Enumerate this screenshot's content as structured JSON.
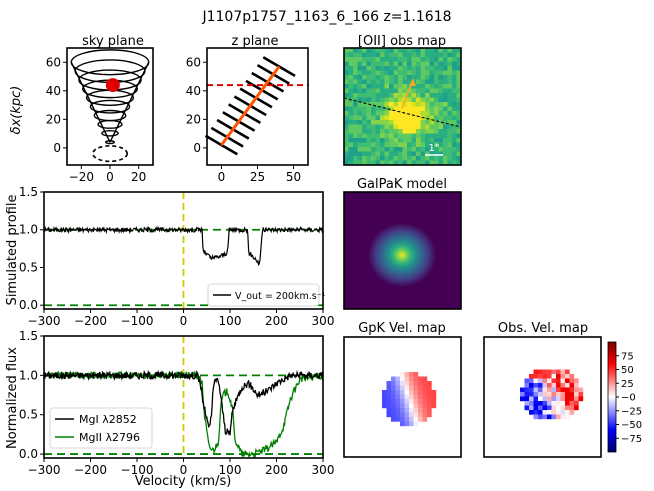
{
  "figure_title": "J1107p1757_1163_6_166 z=1.1618",
  "colors": {
    "spectrum_black": "#000000",
    "spectrum_green": "#008000",
    "continuum": "#008000",
    "zero_line": "#cccc00",
    "cone_red": "#e00000",
    "quasar_orange": "#ff5500",
    "arrow": "#f5a623",
    "velocity_positive": "#cc0000",
    "velocity_negative": "#00008b"
  },
  "chart_data": [
    {
      "id": "sky_plane",
      "type": "diagram",
      "title": "sky plane",
      "ylabel": "δx(kpc)",
      "xlim": [
        -30,
        30
      ],
      "ylim": [
        -12,
        70
      ],
      "xticks": [
        -20,
        0,
        20
      ],
      "yticks": [
        0,
        20,
        40,
        60
      ],
      "cone_rings": 10,
      "marker": {
        "x": 2,
        "y": 44,
        "label": "quasar line of sight"
      }
    },
    {
      "id": "z_plane",
      "type": "diagram",
      "title": "z plane",
      "xlim": [
        -10,
        60
      ],
      "ylim": [
        -12,
        70
      ],
      "xticks": [
        0,
        25,
        50
      ],
      "yticks": [
        0,
        20,
        40,
        60
      ],
      "dashed_line_y": 44,
      "axis_line": {
        "x": [
          0,
          40
        ],
        "y": [
          2,
          57
        ]
      }
    },
    {
      "id": "oii_map",
      "type": "heatmap",
      "title": "[OII] obs map",
      "scale_label": "1\""
    },
    {
      "id": "galpak_model",
      "type": "heatmap",
      "title": "GalPaK model"
    },
    {
      "id": "simulated_profile",
      "type": "line",
      "ylabel": "Simulated profile",
      "xlim": [
        -300,
        300
      ],
      "ylim": [
        -0.05,
        1.5
      ],
      "xticks": [
        -300,
        -200,
        -100,
        0,
        100,
        200,
        300
      ],
      "yticks": [
        0.0,
        0.5,
        1.0,
        1.5
      ],
      "legend": "V_out = 200km.s⁻¹",
      "legend_loc": "lower right",
      "series": [
        {
          "name": "simulated",
          "x": [
            -300,
            -260,
            -240,
            -200,
            -150,
            -100,
            -60,
            0,
            40,
            42,
            60,
            80,
            95,
            98,
            110,
            125,
            138,
            140,
            160,
            163,
            170,
            200,
            250,
            300
          ],
          "y": [
            1.0,
            1.0,
            1.0,
            1.0,
            1.0,
            1.0,
            1.0,
            1.0,
            1.0,
            0.72,
            0.62,
            0.65,
            0.7,
            1.0,
            1.0,
            1.0,
            1.0,
            0.7,
            0.58,
            0.52,
            1.0,
            1.0,
            1.0,
            1.0
          ]
        }
      ]
    },
    {
      "id": "normalized_flux",
      "type": "line",
      "xlabel": "Velocity (km/s)",
      "ylabel": "Normalized flux",
      "xlim": [
        -300,
        300
      ],
      "ylim": [
        -0.05,
        1.5
      ],
      "xticks": [
        -300,
        -200,
        -100,
        0,
        100,
        200,
        300
      ],
      "yticks": [
        0.0,
        0.5,
        1.0,
        1.5
      ],
      "legend_loc": "lower left",
      "series": [
        {
          "name": "MgI λ2852",
          "x": [
            -300,
            -200,
            -100,
            0,
            30,
            38,
            42,
            50,
            55,
            60,
            65,
            75,
            90,
            100,
            105,
            115,
            125,
            140,
            160,
            180,
            200,
            230,
            260,
            300
          ],
          "y": [
            1.0,
            1.0,
            1.0,
            1.0,
            1.0,
            0.85,
            0.65,
            0.45,
            0.3,
            0.5,
            0.9,
            0.95,
            0.3,
            0.25,
            0.55,
            0.7,
            0.85,
            0.9,
            0.75,
            0.8,
            0.9,
            1.0,
            1.0,
            1.0
          ]
        },
        {
          "name": "MgII λ2796",
          "x": [
            -300,
            -200,
            -100,
            0,
            30,
            40,
            45,
            55,
            65,
            75,
            80,
            85,
            95,
            105,
            110,
            125,
            150,
            175,
            200,
            215,
            230,
            250,
            300
          ],
          "y": [
            1.0,
            1.0,
            1.0,
            1.0,
            1.0,
            0.9,
            0.5,
            0.08,
            0.05,
            0.15,
            0.6,
            0.75,
            0.8,
            0.6,
            0.2,
            0.0,
            0.0,
            0.05,
            0.15,
            0.35,
            0.7,
            0.95,
            1.0
          ]
        }
      ]
    },
    {
      "id": "gpk_vel_map",
      "type": "heatmap",
      "title": "GpK Vel. map"
    },
    {
      "id": "obs_vel_map",
      "type": "heatmap",
      "title": "Obs. Vel. map",
      "colorbar_ticks": [
        75,
        50,
        25,
        0,
        -25,
        -50,
        -75
      ],
      "colorbar_tick_labels": [
        "75",
        "50",
        "25",
        "−0",
        "−25",
        "−50",
        "−75"
      ],
      "colorbar_range": [
        -100,
        100
      ]
    }
  ]
}
